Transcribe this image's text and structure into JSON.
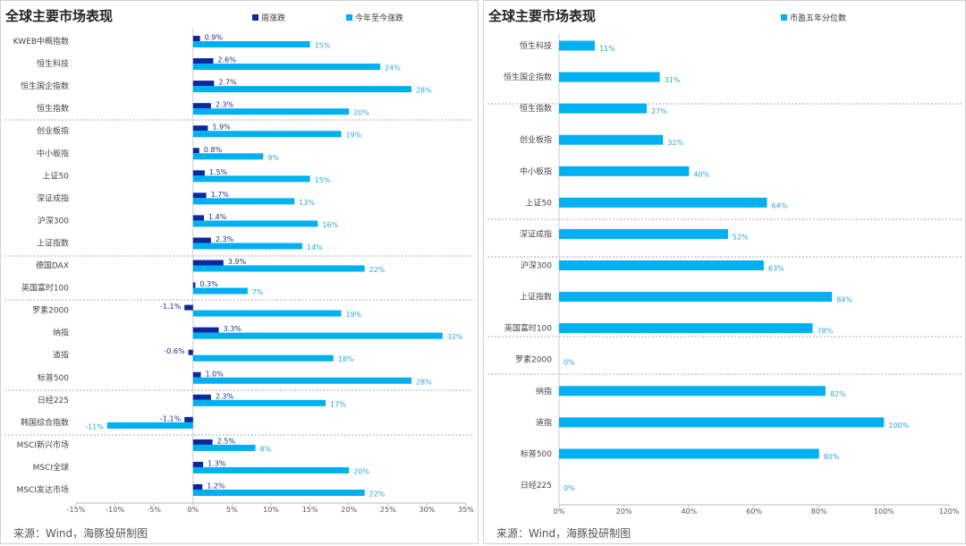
{
  "chart_data": [
    {
      "type": "bar",
      "orientation": "horizontal",
      "title": "全球主要市场表现",
      "categories": [
        "KWEB中概指数",
        "恒生科技",
        "恒生国企指数",
        "恒生指数",
        "创业板指",
        "中小板指",
        "上证50",
        "深证成指",
        "沪深300",
        "上证指数",
        "德国DAX",
        "英国富时100",
        "罗素2000",
        "纳指",
        "道指",
        "标普500",
        "日经225",
        "韩国综合指数",
        "MSCI新兴市场",
        "MSCI全球",
        "MSCI发达市场"
      ],
      "series": [
        {
          "name": "周涨跌",
          "color": "#0a2a9c",
          "values": [
            0.9,
            2.6,
            2.7,
            2.3,
            1.9,
            0.8,
            1.5,
            1.7,
            1.4,
            2.3,
            3.9,
            0.3,
            -1.1,
            3.3,
            -0.6,
            1.0,
            2.3,
            -1.1,
            2.5,
            1.3,
            1.2
          ],
          "labels": [
            "0.9%",
            "2.6%",
            "2.7%",
            "2.3%",
            "1.9%",
            "0.8%",
            "1.5%",
            "1.7%",
            "1.4%",
            "2.3%",
            "3.9%",
            "0.3%",
            "-1.1%",
            "3.3%",
            "-0.6%",
            "1.0%",
            "2.3%",
            "-1.1%",
            "2.5%",
            "1.3%",
            "1.2%"
          ]
        },
        {
          "name": "今年至今涨跌",
          "color": "#00b0f0",
          "values": [
            15,
            24,
            28,
            20,
            19,
            9,
            15,
            13,
            16,
            14,
            22,
            7,
            19,
            32,
            18,
            28,
            17,
            -11,
            8,
            20,
            22
          ],
          "labels": [
            "15%",
            "24%",
            "28%",
            "20%",
            "19%",
            "9%",
            "15%",
            "13%",
            "16%",
            "14%",
            "22%",
            "7%",
            "19%",
            "32%",
            "18%",
            "28%",
            "17%",
            "-11%",
            "8%",
            "20%",
            "22%"
          ]
        }
      ],
      "xlim": [
        -15,
        35
      ],
      "xticks": [
        "-15%",
        "-10%",
        "-5%",
        "0%",
        "5%",
        "10%",
        "15%",
        "20%",
        "25%",
        "30%",
        "35%"
      ],
      "legend": "top",
      "grid": false,
      "source": "来源：Wind，海豚投研制图"
    },
    {
      "type": "bar",
      "orientation": "horizontal",
      "title": "全球主要市场表现",
      "categories": [
        "恒生科技",
        "恒生国企指数",
        "恒生指数",
        "创业板指",
        "中小板指",
        "上证50",
        "深证成指",
        "沪深300",
        "上证指数",
        "英国富时100",
        "罗素2000",
        "纳指",
        "道指",
        "标普500",
        "日经225"
      ],
      "series": [
        {
          "name": "市盈五年分位数",
          "color": "#00b0f0",
          "values": [
            11,
            31,
            27,
            32,
            40,
            64,
            52,
            63,
            84,
            78,
            0,
            82,
            100,
            80,
            0
          ],
          "labels": [
            "11%",
            "31%",
            "27%",
            "32%",
            "40%",
            "64%",
            "52%",
            "63%",
            "84%",
            "78%",
            "0%",
            "82%",
            "100%",
            "80%",
            "0%"
          ]
        }
      ],
      "xlim": [
        0,
        120
      ],
      "xticks": [
        "0%",
        "20%",
        "40%",
        "60%",
        "80%",
        "100%",
        "120%"
      ],
      "legend": "top",
      "grid": false,
      "source": "来源：Wind，海豚投研制图"
    }
  ]
}
